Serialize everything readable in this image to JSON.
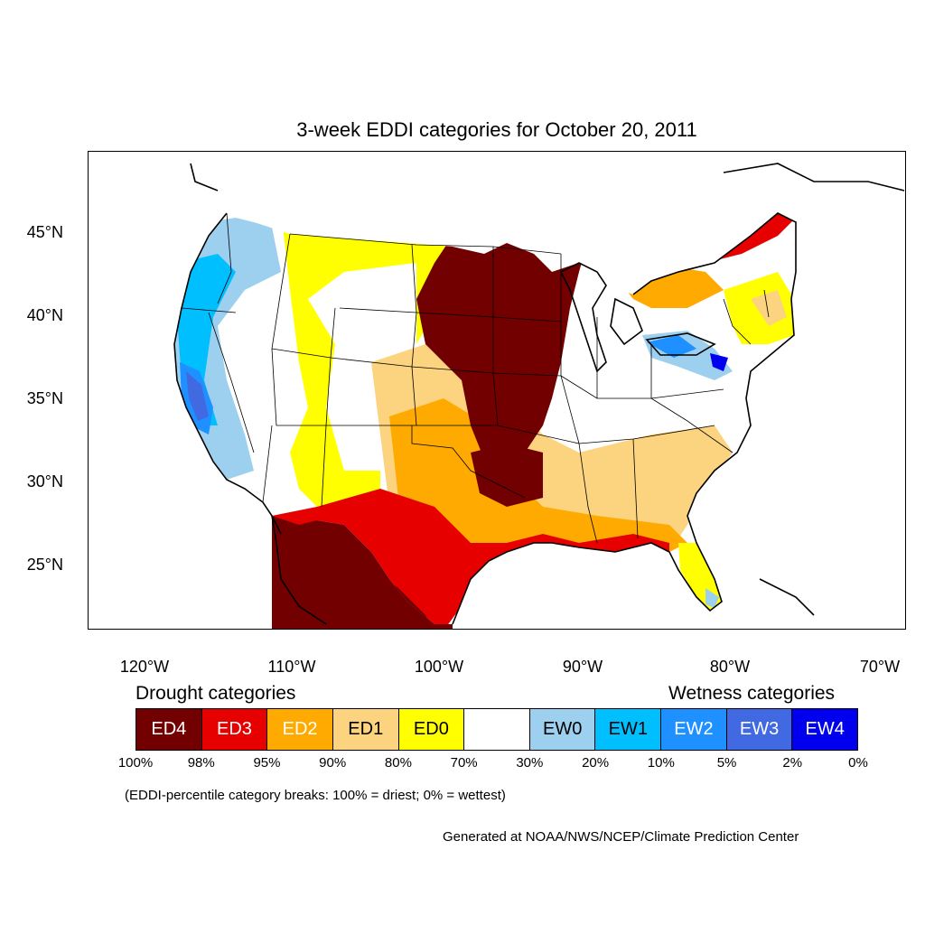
{
  "title": "3-week EDDI categories for October 20, 2011",
  "lat_labels": [
    "45°N",
    "40°N",
    "35°N",
    "30°N",
    "25°N"
  ],
  "lon_labels": [
    "120°W",
    "110°W",
    "100°W",
    "90°W",
    "80°W",
    "70°W"
  ],
  "legend": {
    "drought_heading": "Drought categories",
    "wetness_heading": "Wetness categories",
    "categories": [
      {
        "label": "ED4",
        "color": "#730000"
      },
      {
        "label": "ED3",
        "color": "#e60000"
      },
      {
        "label": "ED2",
        "color": "#ffaa00"
      },
      {
        "label": "ED1",
        "color": "#fcd37f"
      },
      {
        "label": "ED0",
        "color": "#ffff00"
      },
      {
        "label": "",
        "color": "#ffffff"
      },
      {
        "label": "EW0",
        "color": "#9dd0ef"
      },
      {
        "label": "EW1",
        "color": "#00bfff"
      },
      {
        "label": "EW2",
        "color": "#1e90ff"
      },
      {
        "label": "EW3",
        "color": "#4169e1"
      },
      {
        "label": "EW4",
        "color": "#0000ee"
      }
    ],
    "percentiles": [
      "100%",
      "98%",
      "95%",
      "90%",
      "80%",
      "70%",
      "30%",
      "20%",
      "10%",
      "5%",
      "2%",
      "0%"
    ]
  },
  "note": "(EDDI-percentile category breaks: 100% = driest; 0% = wettest)",
  "credit": "Generated at NOAA/NWS/NCEP/Climate Prediction Center"
}
